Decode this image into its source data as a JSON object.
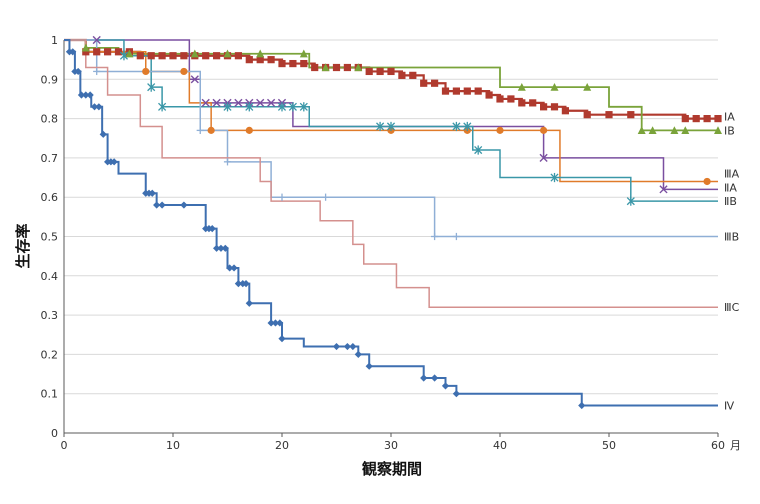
{
  "chart_data": {
    "type": "line",
    "step": true,
    "title": "",
    "xlabel": "観察期間",
    "ylabel": "生存率",
    "x_unit": "月",
    "xlim": [
      0,
      60
    ],
    "ylim": [
      0,
      1
    ],
    "xticks": [
      0,
      10,
      20,
      30,
      40,
      50,
      60
    ],
    "yticks": [
      0,
      0.1,
      0.2,
      0.3,
      0.4,
      0.5,
      0.6,
      0.7,
      0.8,
      0.9,
      1
    ],
    "grid": "horizontal",
    "legend": "end-of-line labels",
    "series": [
      {
        "name": "ⅠA",
        "color": "#b03a2e",
        "marker": "square",
        "stroke_width": 2.2,
        "steps": [
          [
            0,
            1
          ],
          [
            2,
            0.97
          ],
          [
            7,
            0.96
          ],
          [
            17,
            0.95
          ],
          [
            20,
            0.94
          ],
          [
            23,
            0.93
          ],
          [
            28,
            0.92
          ],
          [
            31,
            0.91
          ],
          [
            33,
            0.89
          ],
          [
            35,
            0.87
          ],
          [
            39,
            0.86
          ],
          [
            40,
            0.85
          ],
          [
            42,
            0.84
          ],
          [
            44,
            0.83
          ],
          [
            46,
            0.82
          ],
          [
            48,
            0.81
          ],
          [
            57,
            0.8
          ],
          [
            60,
            0.8
          ]
        ],
        "markers": [
          2,
          3,
          4,
          5,
          6,
          7,
          8,
          9,
          10,
          11,
          12,
          13,
          14,
          15,
          16,
          17,
          18,
          19,
          20,
          21,
          22,
          23,
          24,
          25,
          26,
          27,
          28,
          29,
          30,
          31,
          32,
          33,
          34,
          35,
          36,
          37,
          38,
          39,
          40,
          41,
          42,
          43,
          44,
          45,
          46,
          48,
          50,
          52,
          57,
          58,
          59,
          60
        ]
      },
      {
        "name": "ⅠB",
        "color": "#7aa33a",
        "marker": "triangle",
        "stroke_width": 1.8,
        "steps": [
          [
            0,
            1
          ],
          [
            2,
            0.98
          ],
          [
            5,
            0.965
          ],
          [
            22.5,
            0.93
          ],
          [
            40,
            0.88
          ],
          [
            50,
            0.83
          ],
          [
            53,
            0.77
          ],
          [
            60,
            0.77
          ]
        ],
        "markers": [
          2,
          6,
          12,
          15,
          18,
          22,
          24,
          27,
          42,
          45,
          48,
          53,
          54,
          56,
          57,
          60
        ]
      },
      {
        "name": "ⅢA",
        "color": "#7a4fa0",
        "marker": "x",
        "stroke_width": 1.5,
        "steps": [
          [
            0,
            1
          ],
          [
            11.5,
            0.9
          ],
          [
            12.5,
            0.84
          ],
          [
            21,
            0.78
          ],
          [
            44,
            0.7
          ],
          [
            55,
            0.62
          ],
          [
            60,
            0.62
          ]
        ],
        "markers": [
          3,
          12,
          13,
          14,
          15,
          16,
          17,
          18,
          19,
          20,
          44,
          55
        ]
      },
      {
        "name": "ⅡA",
        "color": "#e07b2a",
        "marker": "circle",
        "stroke_width": 1.5,
        "steps": [
          [
            0,
            1
          ],
          [
            2,
            0.97
          ],
          [
            7.5,
            0.92
          ],
          [
            11.5,
            0.84
          ],
          [
            13.5,
            0.77
          ],
          [
            45.5,
            0.64
          ],
          [
            60,
            0.64
          ]
        ],
        "markers": [
          7.5,
          11,
          13.5,
          17,
          30,
          37,
          40,
          44,
          59
        ]
      },
      {
        "name": "ⅡB",
        "color": "#3a97a8",
        "marker": "star",
        "stroke_width": 1.5,
        "steps": [
          [
            0,
            1
          ],
          [
            5.5,
            0.96
          ],
          [
            8,
            0.88
          ],
          [
            9,
            0.83
          ],
          [
            22.5,
            0.78
          ],
          [
            37.5,
            0.72
          ],
          [
            40,
            0.65
          ],
          [
            52,
            0.59
          ],
          [
            60,
            0.59
          ]
        ],
        "markers": [
          5.5,
          8,
          9,
          15,
          17,
          20,
          21,
          22,
          29,
          30,
          36,
          37,
          38,
          45,
          52
        ]
      },
      {
        "name": "ⅢB",
        "color": "#8fafd6",
        "marker": "plus",
        "stroke_width": 1.5,
        "steps": [
          [
            0,
            1
          ],
          [
            3,
            0.92
          ],
          [
            12.5,
            0.77
          ],
          [
            15,
            0.69
          ],
          [
            19,
            0.6
          ],
          [
            34,
            0.5
          ],
          [
            60,
            0.5
          ]
        ],
        "markers": [
          3,
          12.5,
          15,
          20,
          24,
          34,
          36
        ]
      },
      {
        "name": "ⅢC",
        "color": "#d4908e",
        "marker": "none",
        "stroke_width": 1.5,
        "steps": [
          [
            0,
            1
          ],
          [
            2,
            0.93
          ],
          [
            4,
            0.86
          ],
          [
            7,
            0.78
          ],
          [
            9,
            0.7
          ],
          [
            18,
            0.64
          ],
          [
            19,
            0.59
          ],
          [
            23.5,
            0.54
          ],
          [
            26.5,
            0.48
          ],
          [
            27.5,
            0.43
          ],
          [
            30.5,
            0.37
          ],
          [
            33.5,
            0.32
          ],
          [
            60,
            0.32
          ]
        ],
        "markers": []
      },
      {
        "name": "Ⅳ",
        "color": "#3e6fb0",
        "marker": "diamond",
        "stroke_width": 2,
        "steps": [
          [
            0,
            1
          ],
          [
            0.5,
            0.97
          ],
          [
            1,
            0.92
          ],
          [
            1.5,
            0.86
          ],
          [
            2.5,
            0.83
          ],
          [
            3.5,
            0.76
          ],
          [
            4,
            0.69
          ],
          [
            5,
            0.66
          ],
          [
            7.5,
            0.61
          ],
          [
            8.5,
            0.58
          ],
          [
            13,
            0.52
          ],
          [
            14,
            0.47
          ],
          [
            15,
            0.42
          ],
          [
            16,
            0.38
          ],
          [
            17,
            0.33
          ],
          [
            19,
            0.28
          ],
          [
            20,
            0.24
          ],
          [
            22,
            0.22
          ],
          [
            27,
            0.2
          ],
          [
            28,
            0.17
          ],
          [
            33,
            0.14
          ],
          [
            35,
            0.12
          ],
          [
            36,
            0.1
          ],
          [
            47.5,
            0.07
          ],
          [
            60,
            0.07
          ]
        ],
        "markers": [
          0.5,
          0.8,
          1,
          1.3,
          1.6,
          2,
          2.4,
          2.8,
          3.2,
          3.6,
          4,
          4.3,
          4.6,
          7.5,
          7.8,
          8.1,
          8.5,
          9,
          11,
          13,
          13.3,
          13.6,
          14,
          14.4,
          14.8,
          15.2,
          15.6,
          16,
          16.4,
          16.7,
          17,
          19,
          19.4,
          19.8,
          20,
          25,
          26,
          26.5,
          27,
          28,
          33,
          34,
          35,
          36,
          47.5
        ]
      }
    ]
  }
}
